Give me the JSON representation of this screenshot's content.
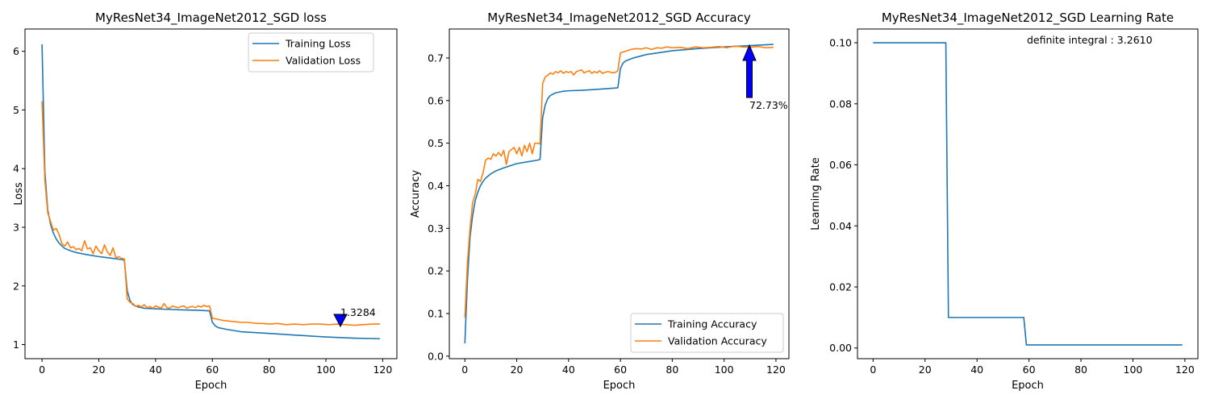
{
  "chart_data": [
    {
      "type": "line",
      "title": "MyResNet34_ImageNet2012_SGD loss",
      "xlabel": "Epoch",
      "ylabel": "Loss",
      "xlim": [
        -6,
        125
      ],
      "ylim": [
        0.76,
        6.38
      ],
      "xticks": [
        0,
        20,
        40,
        60,
        80,
        100,
        120
      ],
      "yticks": [
        1,
        2,
        3,
        4,
        5,
        6
      ],
      "legend": "upper-right",
      "grid": false,
      "annotation": {
        "text": "1.3284",
        "x": 110,
        "y": 1.3284,
        "arrow": "down"
      },
      "series": [
        {
          "name": "Training Loss",
          "color": "#1f77b4",
          "points": [
            [
              0,
              6.12
            ],
            [
              1,
              3.95
            ],
            [
              2,
              3.3
            ],
            [
              3,
              3.05
            ],
            [
              4,
              2.9
            ],
            [
              5,
              2.8
            ],
            [
              6,
              2.73
            ],
            [
              7,
              2.68
            ],
            [
              8,
              2.64
            ],
            [
              10,
              2.6
            ],
            [
              12,
              2.57
            ],
            [
              15,
              2.54
            ],
            [
              20,
              2.5
            ],
            [
              25,
              2.47
            ],
            [
              28,
              2.45
            ],
            [
              29,
              2.44
            ],
            [
              30,
              1.92
            ],
            [
              31,
              1.75
            ],
            [
              32,
              1.68
            ],
            [
              34,
              1.64
            ],
            [
              36,
              1.62
            ],
            [
              40,
              1.61
            ],
            [
              45,
              1.6
            ],
            [
              50,
              1.59
            ],
            [
              55,
              1.585
            ],
            [
              59,
              1.575
            ],
            [
              60,
              1.38
            ],
            [
              61,
              1.32
            ],
            [
              62,
              1.29
            ],
            [
              65,
              1.26
            ],
            [
              70,
              1.22
            ],
            [
              80,
              1.19
            ],
            [
              90,
              1.16
            ],
            [
              100,
              1.13
            ],
            [
              110,
              1.11
            ],
            [
              119,
              1.1
            ]
          ]
        },
        {
          "name": "Validation Loss",
          "color": "#ff7f0e",
          "points": [
            [
              0,
              5.15
            ],
            [
              1,
              3.8
            ],
            [
              2,
              3.25
            ],
            [
              3,
              3.1
            ],
            [
              4,
              2.95
            ],
            [
              5,
              2.98
            ],
            [
              6,
              2.88
            ],
            [
              7,
              2.72
            ],
            [
              8,
              2.68
            ],
            [
              9,
              2.75
            ],
            [
              10,
              2.65
            ],
            [
              11,
              2.67
            ],
            [
              12,
              2.62
            ],
            [
              13,
              2.64
            ],
            [
              14,
              2.6
            ],
            [
              15,
              2.77
            ],
            [
              16,
              2.63
            ],
            [
              17,
              2.65
            ],
            [
              18,
              2.55
            ],
            [
              19,
              2.68
            ],
            [
              20,
              2.6
            ],
            [
              21,
              2.55
            ],
            [
              22,
              2.7
            ],
            [
              23,
              2.58
            ],
            [
              24,
              2.52
            ],
            [
              25,
              2.65
            ],
            [
              26,
              2.48
            ],
            [
              27,
              2.5
            ],
            [
              28,
              2.47
            ],
            [
              29,
              2.46
            ],
            [
              30,
              1.78
            ],
            [
              31,
              1.72
            ],
            [
              32,
              1.7
            ],
            [
              33,
              1.65
            ],
            [
              34,
              1.67
            ],
            [
              35,
              1.64
            ],
            [
              36,
              1.68
            ],
            [
              37,
              1.63
            ],
            [
              38,
              1.65
            ],
            [
              39,
              1.62
            ],
            [
              40,
              1.66
            ],
            [
              41,
              1.64
            ],
            [
              42,
              1.62
            ],
            [
              43,
              1.7
            ],
            [
              44,
              1.63
            ],
            [
              45,
              1.62
            ],
            [
              46,
              1.66
            ],
            [
              47,
              1.64
            ],
            [
              48,
              1.63
            ],
            [
              49,
              1.65
            ],
            [
              50,
              1.66
            ],
            [
              51,
              1.62
            ],
            [
              52,
              1.64
            ],
            [
              53,
              1.65
            ],
            [
              54,
              1.63
            ],
            [
              55,
              1.66
            ],
            [
              56,
              1.64
            ],
            [
              57,
              1.67
            ],
            [
              58,
              1.65
            ],
            [
              59,
              1.66
            ],
            [
              60,
              1.45
            ],
            [
              62,
              1.43
            ],
            [
              64,
              1.41
            ],
            [
              66,
              1.4
            ],
            [
              68,
              1.39
            ],
            [
              70,
              1.38
            ],
            [
              72,
              1.38
            ],
            [
              74,
              1.37
            ],
            [
              76,
              1.36
            ],
            [
              78,
              1.36
            ],
            [
              80,
              1.35
            ],
            [
              83,
              1.36
            ],
            [
              86,
              1.34
            ],
            [
              89,
              1.35
            ],
            [
              92,
              1.34
            ],
            [
              95,
              1.35
            ],
            [
              98,
              1.35
            ],
            [
              101,
              1.34
            ],
            [
              104,
              1.35
            ],
            [
              107,
              1.34
            ],
            [
              110,
              1.33
            ],
            [
              113,
              1.34
            ],
            [
              116,
              1.35
            ],
            [
              119,
              1.35
            ]
          ]
        }
      ]
    },
    {
      "type": "line",
      "title": "MyResNet34_ImageNet2012_SGD Accuracy",
      "xlabel": "Epoch",
      "ylabel": "Accuracy",
      "xlim": [
        -6,
        125
      ],
      "ylim": [
        -0.006,
        0.768
      ],
      "xticks": [
        0,
        20,
        40,
        60,
        80,
        100,
        120
      ],
      "yticks": [
        0.0,
        0.1,
        0.2,
        0.3,
        0.4,
        0.5,
        0.6,
        0.7
      ],
      "legend": "lower-right",
      "grid": false,
      "annotation": {
        "text": "72.73%",
        "x": 110,
        "y": 0.7273,
        "arrow": "up"
      },
      "series": [
        {
          "name": "Training Accuracy",
          "color": "#1f77b4",
          "points": [
            [
              0,
              0.03
            ],
            [
              1,
              0.18
            ],
            [
              2,
              0.28
            ],
            [
              3,
              0.33
            ],
            [
              4,
              0.365
            ],
            [
              5,
              0.385
            ],
            [
              6,
              0.4
            ],
            [
              7,
              0.41
            ],
            [
              8,
              0.418
            ],
            [
              10,
              0.428
            ],
            [
              12,
              0.435
            ],
            [
              15,
              0.442
            ],
            [
              18,
              0.448
            ],
            [
              20,
              0.452
            ],
            [
              25,
              0.457
            ],
            [
              28,
              0.46
            ],
            [
              29,
              0.462
            ],
            [
              30,
              0.56
            ],
            [
              31,
              0.59
            ],
            [
              32,
              0.605
            ],
            [
              33,
              0.612
            ],
            [
              35,
              0.618
            ],
            [
              38,
              0.622
            ],
            [
              40,
              0.623
            ],
            [
              45,
              0.624
            ],
            [
              50,
              0.626
            ],
            [
              55,
              0.628
            ],
            [
              59,
              0.63
            ],
            [
              60,
              0.675
            ],
            [
              61,
              0.688
            ],
            [
              62,
              0.693
            ],
            [
              65,
              0.7
            ],
            [
              70,
              0.708
            ],
            [
              80,
              0.717
            ],
            [
              90,
              0.722
            ],
            [
              100,
              0.726
            ],
            [
              110,
              0.729
            ],
            [
              119,
              0.732
            ]
          ]
        },
        {
          "name": "Validation Accuracy",
          "color": "#ff7f0e",
          "points": [
            [
              0,
              0.09
            ],
            [
              1,
              0.22
            ],
            [
              2,
              0.3
            ],
            [
              3,
              0.36
            ],
            [
              4,
              0.38
            ],
            [
              5,
              0.415
            ],
            [
              6,
              0.41
            ],
            [
              7,
              0.43
            ],
            [
              8,
              0.46
            ],
            [
              9,
              0.465
            ],
            [
              10,
              0.462
            ],
            [
              11,
              0.475
            ],
            [
              12,
              0.47
            ],
            [
              13,
              0.478
            ],
            [
              14,
              0.47
            ],
            [
              15,
              0.483
            ],
            [
              16,
              0.45
            ],
            [
              17,
              0.48
            ],
            [
              18,
              0.485
            ],
            [
              19,
              0.49
            ],
            [
              20,
              0.475
            ],
            [
              21,
              0.49
            ],
            [
              22,
              0.47
            ],
            [
              23,
              0.495
            ],
            [
              24,
              0.48
            ],
            [
              25,
              0.5
            ],
            [
              26,
              0.475
            ],
            [
              27,
              0.5
            ],
            [
              28,
              0.5
            ],
            [
              29,
              0.498
            ],
            [
              30,
              0.64
            ],
            [
              31,
              0.655
            ],
            [
              32,
              0.66
            ],
            [
              33,
              0.665
            ],
            [
              34,
              0.662
            ],
            [
              35,
              0.668
            ],
            [
              36,
              0.665
            ],
            [
              37,
              0.67
            ],
            [
              38,
              0.664
            ],
            [
              39,
              0.668
            ],
            [
              40,
              0.666
            ],
            [
              41,
              0.668
            ],
            [
              42,
              0.66
            ],
            [
              43,
              0.668
            ],
            [
              44,
              0.67
            ],
            [
              45,
              0.672
            ],
            [
              46,
              0.665
            ],
            [
              47,
              0.668
            ],
            [
              48,
              0.67
            ],
            [
              49,
              0.664
            ],
            [
              50,
              0.668
            ],
            [
              51,
              0.665
            ],
            [
              52,
              0.67
            ],
            [
              53,
              0.664
            ],
            [
              54,
              0.666
            ],
            [
              55,
              0.668
            ],
            [
              56,
              0.667
            ],
            [
              57,
              0.665
            ],
            [
              58,
              0.666
            ],
            [
              59,
              0.67
            ],
            [
              60,
              0.712
            ],
            [
              62,
              0.716
            ],
            [
              64,
              0.72
            ],
            [
              66,
              0.722
            ],
            [
              68,
              0.721
            ],
            [
              70,
              0.724
            ],
            [
              72,
              0.72
            ],
            [
              74,
              0.724
            ],
            [
              76,
              0.723
            ],
            [
              78,
              0.726
            ],
            [
              80,
              0.724
            ],
            [
              83,
              0.725
            ],
            [
              86,
              0.722
            ],
            [
              89,
              0.726
            ],
            [
              92,
              0.724
            ],
            [
              95,
              0.725
            ],
            [
              98,
              0.727
            ],
            [
              101,
              0.724
            ],
            [
              104,
              0.728
            ],
            [
              107,
              0.726
            ],
            [
              110,
              0.725
            ],
            [
              113,
              0.727
            ],
            [
              116,
              0.724
            ],
            [
              119,
              0.725
            ]
          ]
        }
      ]
    },
    {
      "type": "line",
      "title": "MyResNet34_ImageNet2012_SGD Learning Rate",
      "xlabel": "Epoch",
      "ylabel": "Learning Rate",
      "xlim": [
        -6,
        125
      ],
      "ylim": [
        -0.0035,
        0.1045
      ],
      "xticks": [
        0,
        20,
        40,
        60,
        80,
        100,
        120
      ],
      "yticks": [
        0.0,
        0.02,
        0.04,
        0.06,
        0.08,
        0.1
      ],
      "ytick_format": "fixed2",
      "legend": "none",
      "grid": false,
      "annotation": {
        "text": "definite integral : 3.2610"
      },
      "series": [
        {
          "color": "#1f77b4",
          "points": [
            [
              0,
              0.1
            ],
            [
              28,
              0.1
            ],
            [
              29,
              0.01
            ],
            [
              58,
              0.01
            ],
            [
              59,
              0.001
            ],
            [
              119,
              0.001
            ]
          ]
        }
      ]
    }
  ]
}
